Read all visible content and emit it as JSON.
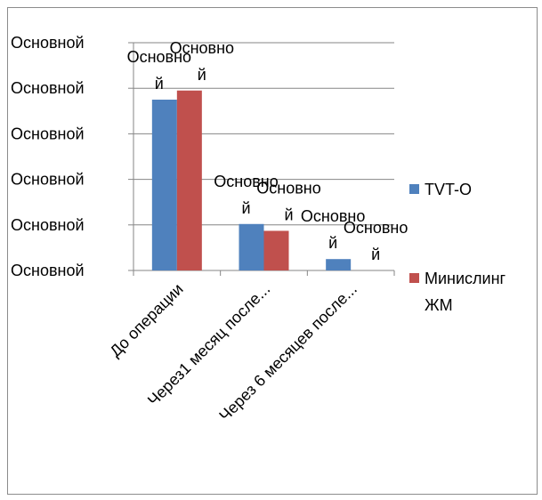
{
  "chart_data": {
    "type": "bar",
    "categories": [
      "До операции",
      "Через1 месяц после...",
      "Через 6 месяцев после..."
    ],
    "series": [
      {
        "name": "TVT-O",
        "color": "#4F81BD",
        "values": [
          37.5,
          10.2,
          2.5
        ],
        "data_labels": [
          "Основной",
          "Основной",
          "Основной"
        ]
      },
      {
        "name": "Минислинг ЖМ",
        "color": "#C0504D",
        "values": [
          39.5,
          8.7,
          0
        ],
        "data_labels": [
          "Основной",
          "Основной",
          "Основной"
        ]
      }
    ],
    "y_tick_labels": [
      "Основной",
      "Основной",
      "Основной",
      "Основной",
      "Основной",
      "Основной"
    ],
    "ylim": [
      0,
      50
    ],
    "legend_position": "right",
    "grid": true
  }
}
